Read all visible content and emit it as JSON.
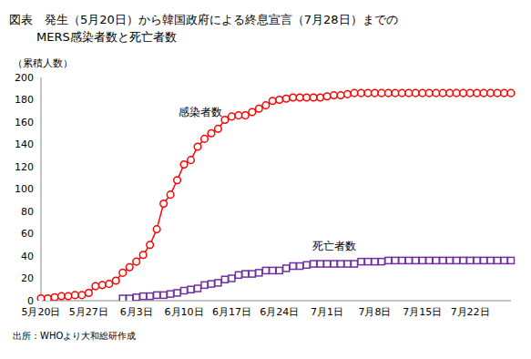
{
  "chart_data": {
    "type": "line",
    "title": [
      "図表　発生（5月20日）から韓国政府による終息宣言（7月28日）までの",
      "MERS感染者数と死亡者数"
    ],
    "y_label": "（累積人数）",
    "source": "出所：WHOより大和総研作成",
    "categories": [
      "5月20日",
      null,
      null,
      null,
      null,
      null,
      null,
      "5月27日",
      null,
      null,
      null,
      null,
      null,
      null,
      "6月3日",
      null,
      null,
      null,
      null,
      null,
      null,
      "6月10日",
      null,
      null,
      null,
      null,
      null,
      null,
      "6月17日",
      null,
      null,
      null,
      null,
      null,
      null,
      "6月24日",
      null,
      null,
      null,
      null,
      null,
      null,
      "7月1日",
      null,
      null,
      null,
      null,
      null,
      null,
      "7月8日",
      null,
      null,
      null,
      null,
      null,
      null,
      "7月15日",
      null,
      null,
      null,
      null,
      null,
      null,
      "7月22日",
      null,
      null,
      null,
      null,
      null,
      null
    ],
    "series": [
      {
        "name": "感染者数",
        "color": "#ff0000",
        "marker": "circle",
        "values": [
          2,
          2,
          3,
          4,
          4,
          5,
          5,
          7,
          13,
          14,
          15,
          18,
          25,
          30,
          35,
          41,
          50,
          64,
          87,
          95,
          108,
          122,
          126,
          138,
          145,
          150,
          154,
          162,
          165,
          166,
          166,
          169,
          172,
          175,
          179,
          180,
          181,
          182,
          182,
          182,
          182,
          182,
          183,
          184,
          184,
          185,
          186,
          186,
          186,
          186,
          186,
          186,
          186,
          186,
          186,
          186,
          186,
          186,
          186,
          186,
          186,
          186,
          186,
          186,
          186,
          186,
          186,
          186,
          186,
          186
        ]
      },
      {
        "name": "死亡者数",
        "color": "#7030a0",
        "marker": "square",
        "values": [
          null,
          null,
          null,
          null,
          null,
          null,
          null,
          null,
          null,
          null,
          null,
          null,
          2,
          2,
          3,
          4,
          4,
          5,
          5,
          6,
          7,
          9,
          10,
          11,
          14,
          15,
          16,
          19,
          20,
          23,
          24,
          24,
          25,
          27,
          27,
          27,
          29,
          31,
          31,
          32,
          33,
          33,
          33,
          33,
          33,
          33,
          33,
          35,
          35,
          35,
          35,
          36,
          36,
          36,
          36,
          36,
          36,
          36,
          36,
          36,
          36,
          36,
          36,
          36,
          36,
          36,
          36,
          36,
          36,
          36
        ]
      }
    ],
    "ylim": [
      0,
      200
    ],
    "yticks": [
      0,
      20,
      40,
      60,
      80,
      100,
      120,
      140,
      160,
      180,
      200
    ],
    "grid": false,
    "legend": "none"
  }
}
